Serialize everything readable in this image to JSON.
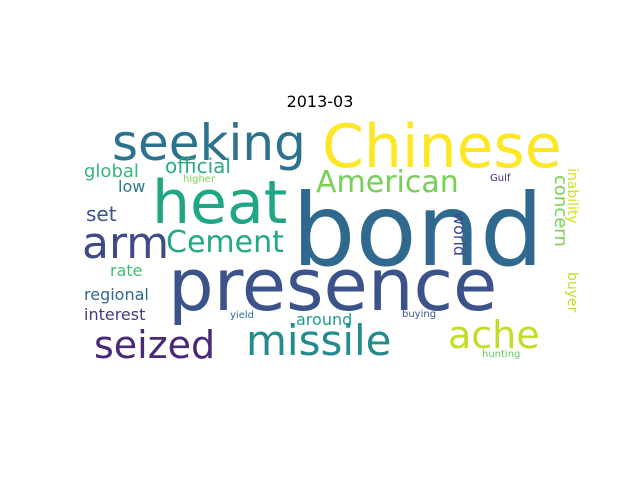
{
  "title": "2013-03",
  "words": [
    {
      "text": "bond",
      "color": "#30698e"
    },
    {
      "text": "presence",
      "color": "#3b528b"
    },
    {
      "text": "Chinese",
      "color": "#fde725"
    },
    {
      "text": "heat",
      "color": "#21a685"
    },
    {
      "text": "seeking",
      "color": "#2c728e"
    },
    {
      "text": "arm",
      "color": "#3e4a89"
    },
    {
      "text": "missile",
      "color": "#238a8d"
    },
    {
      "text": "seized",
      "color": "#482878"
    },
    {
      "text": "ache",
      "color": "#bddf26"
    },
    {
      "text": "American",
      "color": "#75d054"
    },
    {
      "text": "Cement",
      "color": "#22a884"
    },
    {
      "text": "official",
      "color": "#29af7f"
    },
    {
      "text": "global",
      "color": "#35b779"
    },
    {
      "text": "low",
      "color": "#2a788e"
    },
    {
      "text": "set",
      "color": "#3b528b"
    },
    {
      "text": "rate",
      "color": "#3fbc73"
    },
    {
      "text": "regional",
      "color": "#31688e"
    },
    {
      "text": "interest",
      "color": "#443a83"
    },
    {
      "text": "around",
      "color": "#1f9e89"
    },
    {
      "text": "concern",
      "color": "#7ad151"
    },
    {
      "text": "world",
      "color": "#3e4989"
    },
    {
      "text": "buyer",
      "color": "#c0df25"
    },
    {
      "text": "inability",
      "color": "#d2e21b"
    },
    {
      "text": "higher",
      "color": "#7ad151"
    },
    {
      "text": "Gulf",
      "color": "#482878"
    },
    {
      "text": "yield",
      "color": "#2e6f8e"
    },
    {
      "text": "buying",
      "color": "#3b528b"
    },
    {
      "text": "hunting",
      "color": "#5ec962"
    }
  ]
}
